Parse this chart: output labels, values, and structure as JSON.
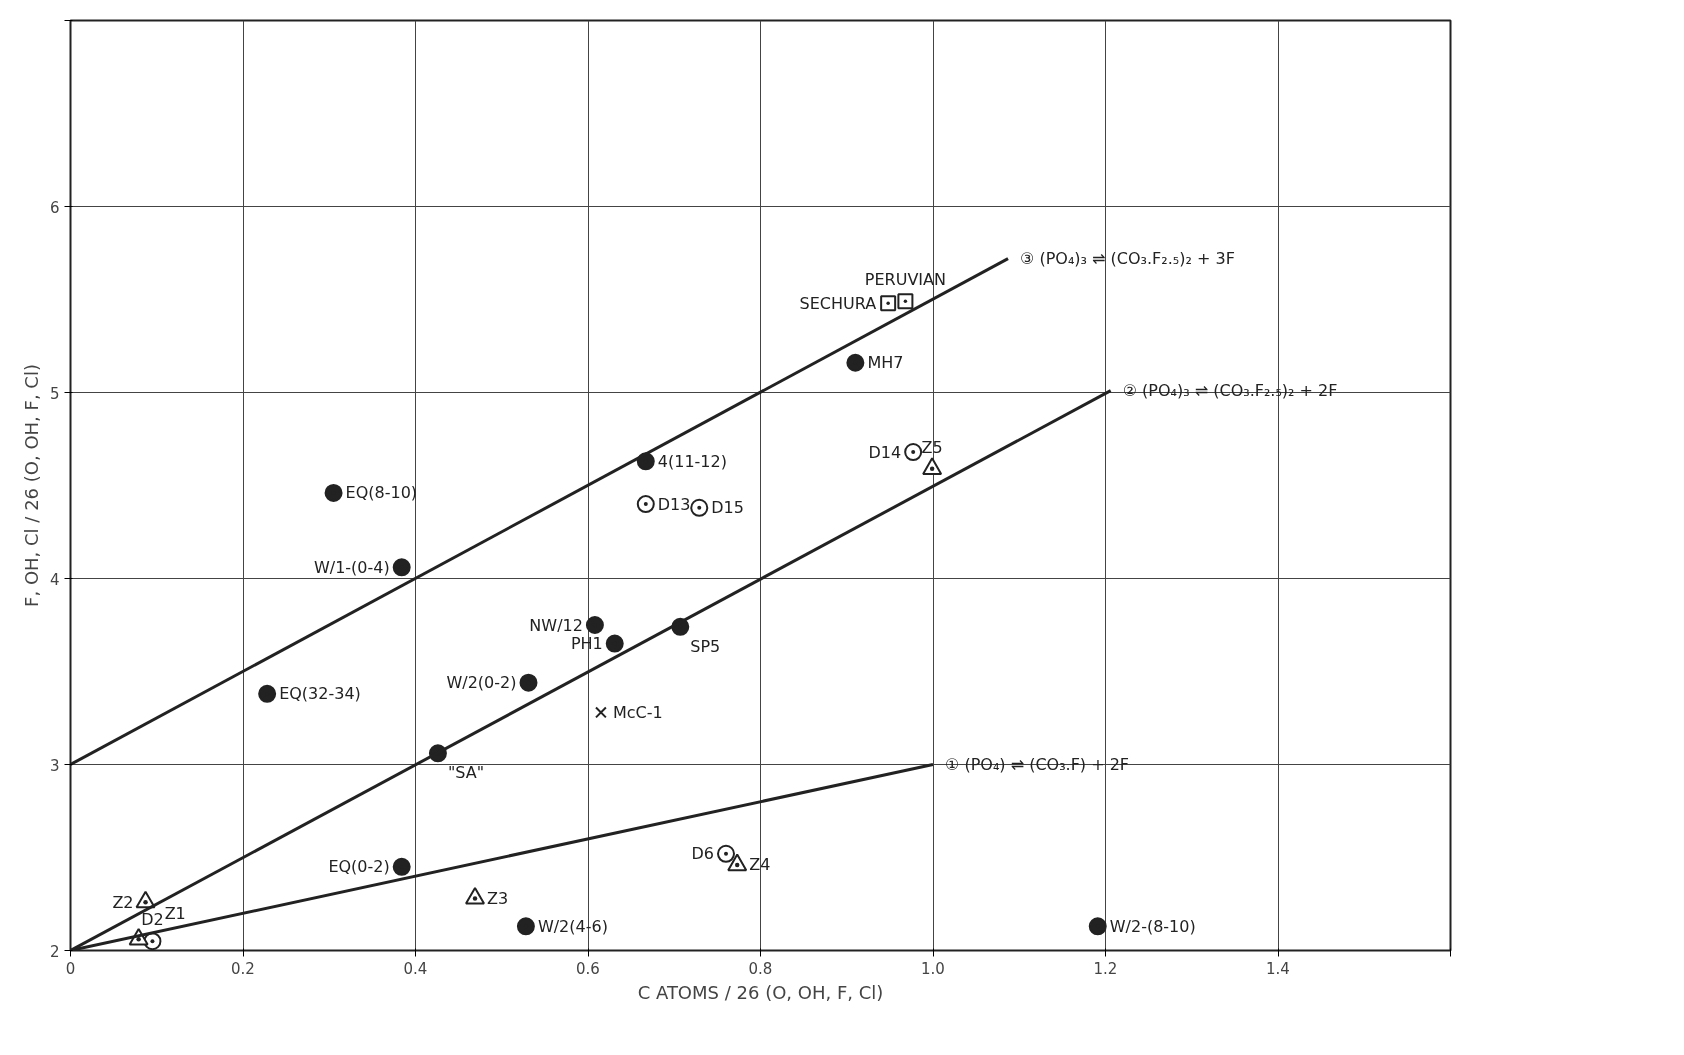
{
  "chart_data": {
    "type": "scatter",
    "xlabel": "C ATOMS / 26 (O, OH, F, Cl)",
    "ylabel": "F, OH, Cl / 26 (O, OH, F, Cl)",
    "xlim": [
      0,
      1.6
    ],
    "ylim": [
      2,
      7
    ],
    "xticks": [
      0,
      0.2,
      0.4,
      0.6,
      0.8,
      {
        "value": 1.0,
        "label": "1.0"
      },
      1.2,
      1.4,
      {
        "value": 1.6,
        "label": null
      }
    ],
    "yticks": [
      2,
      3,
      4,
      5,
      6,
      {
        "value": 7,
        "label": null
      }
    ],
    "grid": true,
    "series": [
      {
        "marker": "circle",
        "color": "#222222",
        "x": [
          0.305,
          0.384,
          0.228,
          0.426,
          0.531,
          0.608,
          0.631,
          0.707,
          0.667,
          0.91,
          0.384,
          0.528,
          1.191
        ],
        "values": [
          4.46,
          4.06,
          3.38,
          3.06,
          3.44,
          3.75,
          3.65,
          3.74,
          4.63,
          5.16,
          2.45,
          2.13,
          2.13
        ]
      },
      {
        "marker": "circle",
        "color": "#ffffff",
        "x": [
          0.667,
          0.729,
          0.977,
          0.76,
          0.095
        ],
        "values": [
          4.4,
          4.38,
          4.68,
          2.52,
          2.05
        ]
      },
      {
        "marker": "square",
        "color": "#ffffff",
        "x": [
          0.948,
          0.968
        ],
        "values": [
          5.48,
          5.49
        ]
      },
      {
        "marker": "triangle",
        "color": "#ffffff",
        "x": [
          0.087,
          0.079,
          0.469,
          0.773,
          0.999
        ],
        "values": [
          2.26,
          2.06,
          2.28,
          2.46,
          4.59
        ]
      },
      {
        "marker": "cross",
        "color": "#222222",
        "x": [
          0.615
        ],
        "values": [
          3.28
        ]
      },
      {
        "type": "line",
        "marker": "none",
        "color": "#222222",
        "x": [
          0,
          1.0
        ],
        "values": [
          2,
          3
        ]
      },
      {
        "type": "line",
        "marker": "none",
        "color": "#222222",
        "x": [
          0,
          1.206
        ],
        "values": [
          2,
          5.01
        ]
      },
      {
        "type": "line",
        "marker": "none",
        "color": "#222222",
        "x": [
          0,
          1.087
        ],
        "values": [
          3,
          5.72
        ]
      }
    ],
    "annotations": [
      {
        "text": "EQ(8-10)",
        "x": 0.305,
        "y": 4.46
      },
      {
        "text": "W/1-(0-4)",
        "x": 0.384,
        "y": 4.06
      },
      {
        "text": "EQ(32-34)",
        "x": 0.228,
        "y": 3.38
      },
      {
        "text": "\"SA\"",
        "x": 0.426,
        "y": 3.06
      },
      {
        "text": "W/2(0-2)",
        "x": 0.531,
        "y": 3.44
      },
      {
        "text": "NW/12",
        "x": 0.608,
        "y": 3.75
      },
      {
        "text": "PH1",
        "x": 0.631,
        "y": 3.65
      },
      {
        "text": "SP5",
        "x": 0.707,
        "y": 3.74
      },
      {
        "text": "McC-1",
        "x": 0.615,
        "y": 3.28
      },
      {
        "text": "4(11-12)",
        "x": 0.667,
        "y": 4.63
      },
      {
        "text": "D13",
        "x": 0.667,
        "y": 4.4
      },
      {
        "text": "D15",
        "x": 0.729,
        "y": 4.38
      },
      {
        "text": "MH7",
        "x": 0.91,
        "y": 5.16
      },
      {
        "text": "SECHURA",
        "x": 0.948,
        "y": 5.48
      },
      {
        "text": "PERUVIAN",
        "x": 0.968,
        "y": 5.49
      },
      {
        "text": "D14",
        "x": 0.977,
        "y": 4.68
      },
      {
        "text": "Z5",
        "x": 0.999,
        "y": 4.59
      },
      {
        "text": "EQ(0-2)",
        "x": 0.384,
        "y": 2.45
      },
      {
        "text": "Z2",
        "x": 0.087,
        "y": 2.26
      },
      {
        "text": "Z1",
        "x": 0.079,
        "y": 2.06
      },
      {
        "text": "D2",
        "x": 0.095,
        "y": 2.05
      },
      {
        "text": "Z3",
        "x": 0.469,
        "y": 2.28
      },
      {
        "text": "W/2(4-6)",
        "x": 0.528,
        "y": 2.13
      },
      {
        "text": "D6",
        "x": 0.76,
        "y": 2.52
      },
      {
        "text": "Z4",
        "x": 0.773,
        "y": 2.46
      },
      {
        "text": "W/2-(8-10)",
        "x": 1.191,
        "y": 2.13
      },
      {
        "text": "③ (PO₄)₃ ⇌ (CO₃.F₂.₅)₂ + 3F",
        "x": 1.087,
        "y": 5.72
      },
      {
        "text": "② (PO₄)₃ ⇌ (CO₃.F₂.₅)₂ + 2F",
        "x": 1.206,
        "y": 5.01
      },
      {
        "text": "① (PO₄) ⇌ (CO₃.F) + 2F",
        "x": 1.0,
        "y": 3.0
      }
    ]
  }
}
